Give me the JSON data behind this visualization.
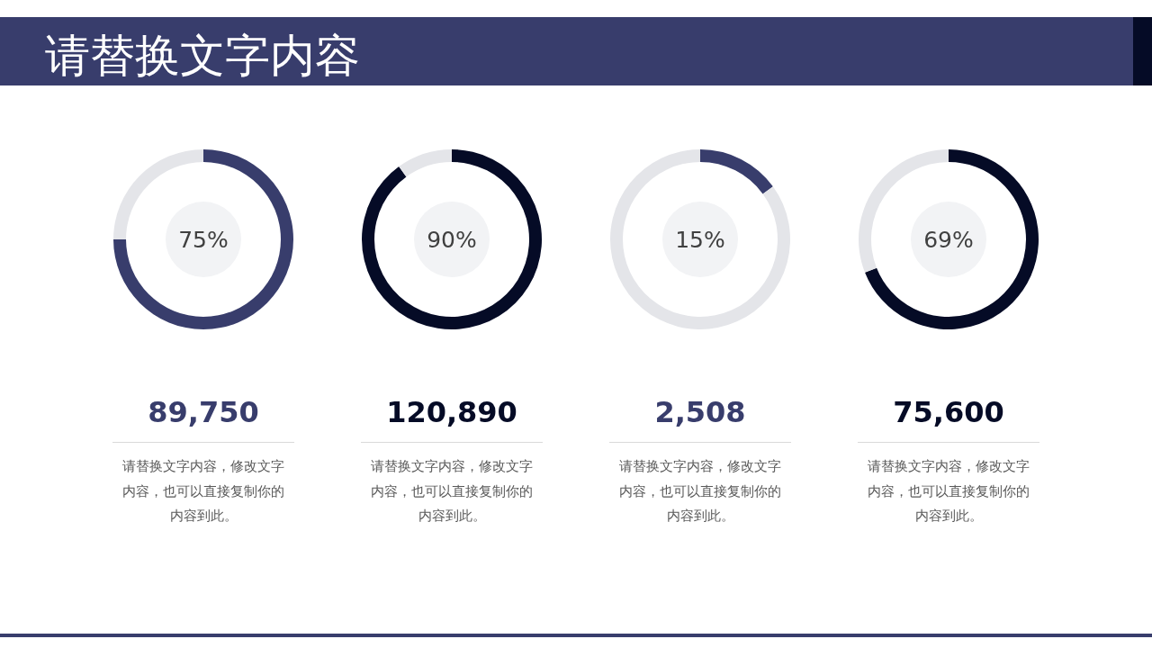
{
  "chart_data": [
    {
      "type": "other",
      "title": "请替换文字内容"
    },
    {
      "type": "donut",
      "categories": [
        null,
        null
      ],
      "values": [
        75,
        25
      ],
      "colors": [
        "#383d6c",
        "#e4e5e9"
      ],
      "title": "89,750",
      "annotations": [
        "75%",
        "请替换文字内容，修改文字内容，也可以直接复制你的内容到此。"
      ]
    },
    {
      "type": "donut",
      "categories": [
        null,
        null
      ],
      "values": [
        90,
        10
      ],
      "colors": [
        "#050b26",
        "#e4e5e9"
      ],
      "title": "120,890",
      "annotations": [
        "90%",
        "请替换文字内容，修改文字内容，也可以直接复制你的内容到此。"
      ]
    },
    {
      "type": "donut",
      "categories": [
        null,
        null
      ],
      "values": [
        15,
        85
      ],
      "colors": [
        "#383d6c",
        "#e4e5e9"
      ],
      "title": "2,508",
      "annotations": [
        "15%",
        "请替换文字内容，修改文字内容，也可以直接复制你的内容到此。"
      ]
    },
    {
      "type": "donut",
      "categories": [
        null,
        null
      ],
      "values": [
        69,
        31
      ],
      "colors": [
        "#050b26",
        "#e4e5e9"
      ],
      "title": "75,600",
      "annotations": [
        "69%",
        "请替换文字内容，修改文字内容，也可以直接复制你的内容到此。"
      ]
    }
  ]
}
